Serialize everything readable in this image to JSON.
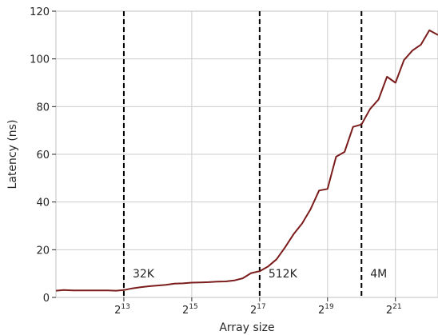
{
  "chart_data": {
    "type": "line",
    "xlabel": "Array size",
    "ylabel": "Latency (ns)",
    "x_scale": "log2",
    "xlim": [
      2048,
      5000000
    ],
    "ylim": [
      0,
      120
    ],
    "grid": true,
    "y_ticks": [
      0,
      20,
      40,
      60,
      80,
      100,
      120
    ],
    "x_ticks": [
      {
        "value": 8192,
        "base": "2",
        "exp": "13"
      },
      {
        "value": 32768,
        "base": "2",
        "exp": "15"
      },
      {
        "value": 131072,
        "base": "2",
        "exp": "17"
      },
      {
        "value": 524288,
        "base": "2",
        "exp": "19"
      },
      {
        "value": 2097152,
        "base": "2",
        "exp": "21"
      }
    ],
    "line_color": "#7b1c1c",
    "series": [
      {
        "x": [
          2048,
          2400,
          2900,
          3500,
          4200,
          5000,
          5900,
          7000,
          8192,
          9700,
          11500,
          13700,
          16300,
          19400,
          23000,
          27400,
          32768,
          38900,
          46300,
          55100,
          65536,
          77900,
          92700,
          110000,
          131072,
          156000,
          185000,
          220000,
          262144,
          312000,
          371000,
          441000,
          524288,
          624000,
          742000,
          882000,
          1048576,
          1248000,
          1484000,
          1765000,
          2097152,
          2496000,
          2968000,
          3530000,
          4194304,
          5000000
        ],
        "y": [
          2.8,
          3.1,
          2.9,
          2.9,
          2.9,
          2.9,
          2.9,
          2.8,
          3.1,
          3.8,
          4.3,
          4.7,
          5.0,
          5.3,
          5.8,
          5.9,
          6.2,
          6.3,
          6.4,
          6.6,
          6.7,
          7.1,
          8.0,
          10.2,
          11.0,
          13.0,
          16.0,
          21.0,
          26.5,
          31.0,
          37.0,
          44.8,
          45.5,
          59.0,
          61.0,
          71.5,
          72.5,
          79.0,
          83.0,
          92.5,
          90.0,
          99.5,
          103.5,
          106.0,
          112.0,
          110.0
        ]
      }
    ],
    "annotations": [
      {
        "x": 8192,
        "label": "32K"
      },
      {
        "x": 131072,
        "label": "512K"
      },
      {
        "x": 1048576,
        "label": "4M"
      }
    ]
  }
}
